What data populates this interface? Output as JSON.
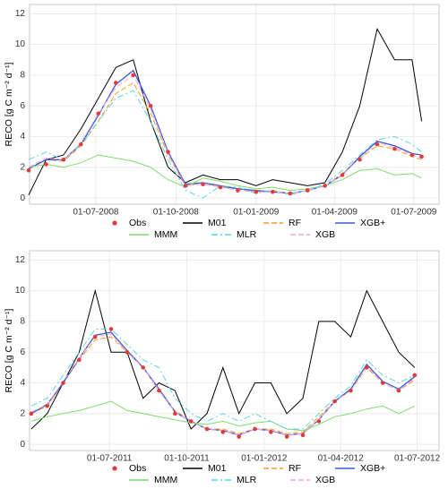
{
  "chart_data": [
    {
      "type": "line",
      "y_label": "RECO [g C m⁻² d⁻¹]",
      "grid": true,
      "x": [
        "2008-04-15",
        "2008-05-05",
        "2008-05-25",
        "2008-06-14",
        "2008-07-04",
        "2008-07-24",
        "2008-08-13",
        "2008-09-02",
        "2008-09-22",
        "2008-10-12",
        "2008-11-01",
        "2008-11-21",
        "2008-12-11",
        "2009-01-01",
        "2009-01-20",
        "2009-02-09",
        "2009-03-01",
        "2009-03-21",
        "2009-04-10",
        "2009-04-30",
        "2009-05-20",
        "2009-06-09",
        "2009-06-29",
        "2009-07-10"
      ],
      "xlim": [
        "2008-04-16",
        "2009-07-30"
      ],
      "xticks": [
        {
          "value": "2008-07-01",
          "label": "01-07-2008"
        },
        {
          "value": "2008-10-01",
          "label": "01-10-2008"
        },
        {
          "value": "2009-01-01",
          "label": "01-01-2009"
        },
        {
          "value": "2009-04-01",
          "label": "01-04-2009"
        },
        {
          "value": "2009-07-01",
          "label": "01-07-2009"
        }
      ],
      "ylim": [
        -0.4,
        12.6
      ],
      "yticks": [
        0,
        2,
        4,
        6,
        8,
        10,
        12
      ],
      "series": [
        {
          "name": "Obs",
          "color": "#e23b3b",
          "style": "points",
          "values": [
            1.8,
            2.2,
            2.5,
            3.5,
            5.5,
            7.5,
            8,
            6,
            3,
            0.8,
            0.9,
            0.7,
            0.5,
            0.4,
            0.4,
            0.3,
            0.5,
            0.8,
            1.5,
            2.5,
            3.5,
            3.2,
            2.8,
            2.7
          ]
        },
        {
          "name": "M01",
          "color": "#000000",
          "style": "solid",
          "values": [
            0.2,
            2.5,
            2.8,
            4.5,
            6.5,
            8.5,
            9,
            5,
            2,
            1,
            1.5,
            1.2,
            1.2,
            0.8,
            1.2,
            1,
            0.8,
            1,
            3,
            6,
            11,
            9,
            9,
            5
          ]
        },
        {
          "name": "RF",
          "color": "#f39c1f",
          "style": "dashed",
          "values": [
            2,
            2.5,
            2.4,
            3.4,
            5,
            6.8,
            7.5,
            5.5,
            2.8,
            0.8,
            1,
            0.7,
            0.6,
            0.4,
            0.5,
            0.3,
            0.5,
            0.8,
            1.6,
            2.6,
            3.4,
            3.2,
            2.7,
            2.5
          ]
        },
        {
          "name": "XGB+",
          "color": "#3a5bd9",
          "style": "solid",
          "values": [
            1.9,
            2.5,
            2.5,
            3.5,
            5.4,
            7.4,
            8.3,
            6,
            3,
            0.9,
            1,
            0.8,
            0.6,
            0.5,
            0.4,
            0.3,
            0.5,
            0.8,
            1.5,
            2.7,
            3.7,
            3.4,
            2.9,
            2.8
          ]
        },
        {
          "name": "MMM",
          "color": "#7fdc6a",
          "style": "solid",
          "values": [
            2,
            2.2,
            2,
            2.3,
            2.8,
            2.6,
            2.4,
            2,
            1.2,
            0.7,
            1.3,
            1.1,
            0.8,
            0.6,
            0.7,
            0.5,
            0.6,
            0.8,
            1.2,
            1.8,
            1.9,
            1.5,
            1.6,
            1.3
          ]
        },
        {
          "name": "MLR",
          "color": "#5ad4e6",
          "style": "dotdash",
          "values": [
            2.5,
            3,
            2.5,
            3.5,
            5,
            6.5,
            7,
            5,
            2.5,
            0.5,
            0,
            0.8,
            0.7,
            0.3,
            0.5,
            0.2,
            0.5,
            0.9,
            1.8,
            2.8,
            3.8,
            4,
            3.5,
            3
          ]
        },
        {
          "name": "XGB",
          "color": "#f0a6e8",
          "style": "dashed",
          "values": [
            2,
            2.6,
            2.5,
            3.6,
            5.5,
            7.2,
            8,
            5.8,
            2.9,
            0.8,
            0.9,
            0.7,
            0.5,
            0.4,
            0.4,
            0.3,
            0.5,
            0.8,
            1.5,
            2.6,
            3.6,
            3.3,
            2.8,
            2.6
          ]
        }
      ]
    },
    {
      "type": "line",
      "y_label": "RECO [g C m⁻² d⁻¹]",
      "grid": true,
      "x": [
        "2011-03-30",
        "2011-04-18",
        "2011-05-07",
        "2011-05-26",
        "2011-06-14",
        "2011-07-03",
        "2011-07-22",
        "2011-08-10",
        "2011-08-29",
        "2011-09-17",
        "2011-10-06",
        "2011-10-25",
        "2011-11-13",
        "2011-12-02",
        "2011-12-21",
        "2012-01-09",
        "2012-01-28",
        "2012-02-16",
        "2012-03-06",
        "2012-03-25",
        "2012-04-13",
        "2012-05-02",
        "2012-05-21",
        "2012-06-09",
        "2012-06-28"
      ],
      "xlim": [
        "2011-03-28",
        "2012-07-27"
      ],
      "xticks": [
        {
          "value": "2011-07-01",
          "label": "01-07-2011"
        },
        {
          "value": "2011-10-01",
          "label": "01-10-2011"
        },
        {
          "value": "2012-01-01",
          "label": "01-01-2012"
        },
        {
          "value": "2012-04-01",
          "label": "01-04-2012"
        },
        {
          "value": "2012-07-01",
          "label": "01-07-2012"
        }
      ],
      "ylim": [
        -0.4,
        12.6
      ],
      "yticks": [
        0,
        2,
        4,
        6,
        8,
        10,
        12
      ],
      "series": [
        {
          "name": "Obs",
          "color": "#e23b3b",
          "style": "points",
          "values": [
            2,
            2.5,
            4,
            5.5,
            7,
            7.5,
            6,
            5,
            3.5,
            2,
            1.5,
            1,
            0.8,
            0.5,
            1,
            0.8,
            0.5,
            0.6,
            1.5,
            2.8,
            3.5,
            5,
            4,
            3.5,
            4.5
          ]
        },
        {
          "name": "M01",
          "color": "#000000",
          "style": "solid",
          "values": [
            1,
            2,
            4,
            6,
            10,
            6,
            6,
            3,
            4,
            3.5,
            1,
            2,
            5,
            2,
            4,
            4,
            2,
            3,
            8,
            8,
            7,
            10,
            8,
            6,
            5
          ]
        },
        {
          "name": "RF",
          "color": "#f39c1f",
          "style": "dashed",
          "values": [
            2,
            2.5,
            4,
            5.5,
            6.8,
            7,
            6,
            5,
            3.5,
            2.2,
            1.5,
            1,
            1,
            0.7,
            1,
            1,
            0.7,
            0.8,
            1.8,
            2.8,
            3.5,
            5,
            4,
            3.5,
            4.2
          ]
        },
        {
          "name": "XGB+",
          "color": "#3a5bd9",
          "style": "solid",
          "values": [
            2,
            2.6,
            4,
            5.6,
            7.1,
            7.3,
            6.1,
            5,
            3.6,
            2.1,
            1.5,
            1,
            0.9,
            0.6,
            1,
            0.9,
            0.6,
            0.7,
            1.6,
            2.8,
            3.6,
            5.2,
            4.1,
            3.6,
            4.4
          ]
        },
        {
          "name": "MMM",
          "color": "#7fdc6a",
          "style": "solid",
          "values": [
            1.5,
            1.8,
            2,
            2.2,
            2.5,
            2.8,
            2.2,
            2,
            1.8,
            1.6,
            1.4,
            1.3,
            1.5,
            1.2,
            1.4,
            1.5,
            1,
            0.9,
            1.3,
            1.8,
            2,
            2.3,
            2.5,
            2,
            2.5
          ]
        },
        {
          "name": "MLR",
          "color": "#5ad4e6",
          "style": "dotdash",
          "values": [
            2.5,
            3,
            4.5,
            6,
            7.5,
            7.5,
            6.5,
            5.5,
            5,
            3,
            2,
            1.5,
            2,
            1.5,
            2,
            1.5,
            1,
            1,
            2,
            3,
            3.8,
            5.5,
            4.5,
            4,
            4.5
          ]
        },
        {
          "name": "XGB",
          "color": "#f0a6e8",
          "style": "dashed",
          "values": [
            2.1,
            2.6,
            4.1,
            5.6,
            7,
            7.2,
            6,
            5,
            3.5,
            2.1,
            1.5,
            1,
            0.9,
            0.6,
            1,
            0.9,
            0.6,
            0.7,
            1.6,
            2.8,
            3.5,
            5.1,
            4,
            3.5,
            4.3
          ]
        }
      ]
    }
  ]
}
